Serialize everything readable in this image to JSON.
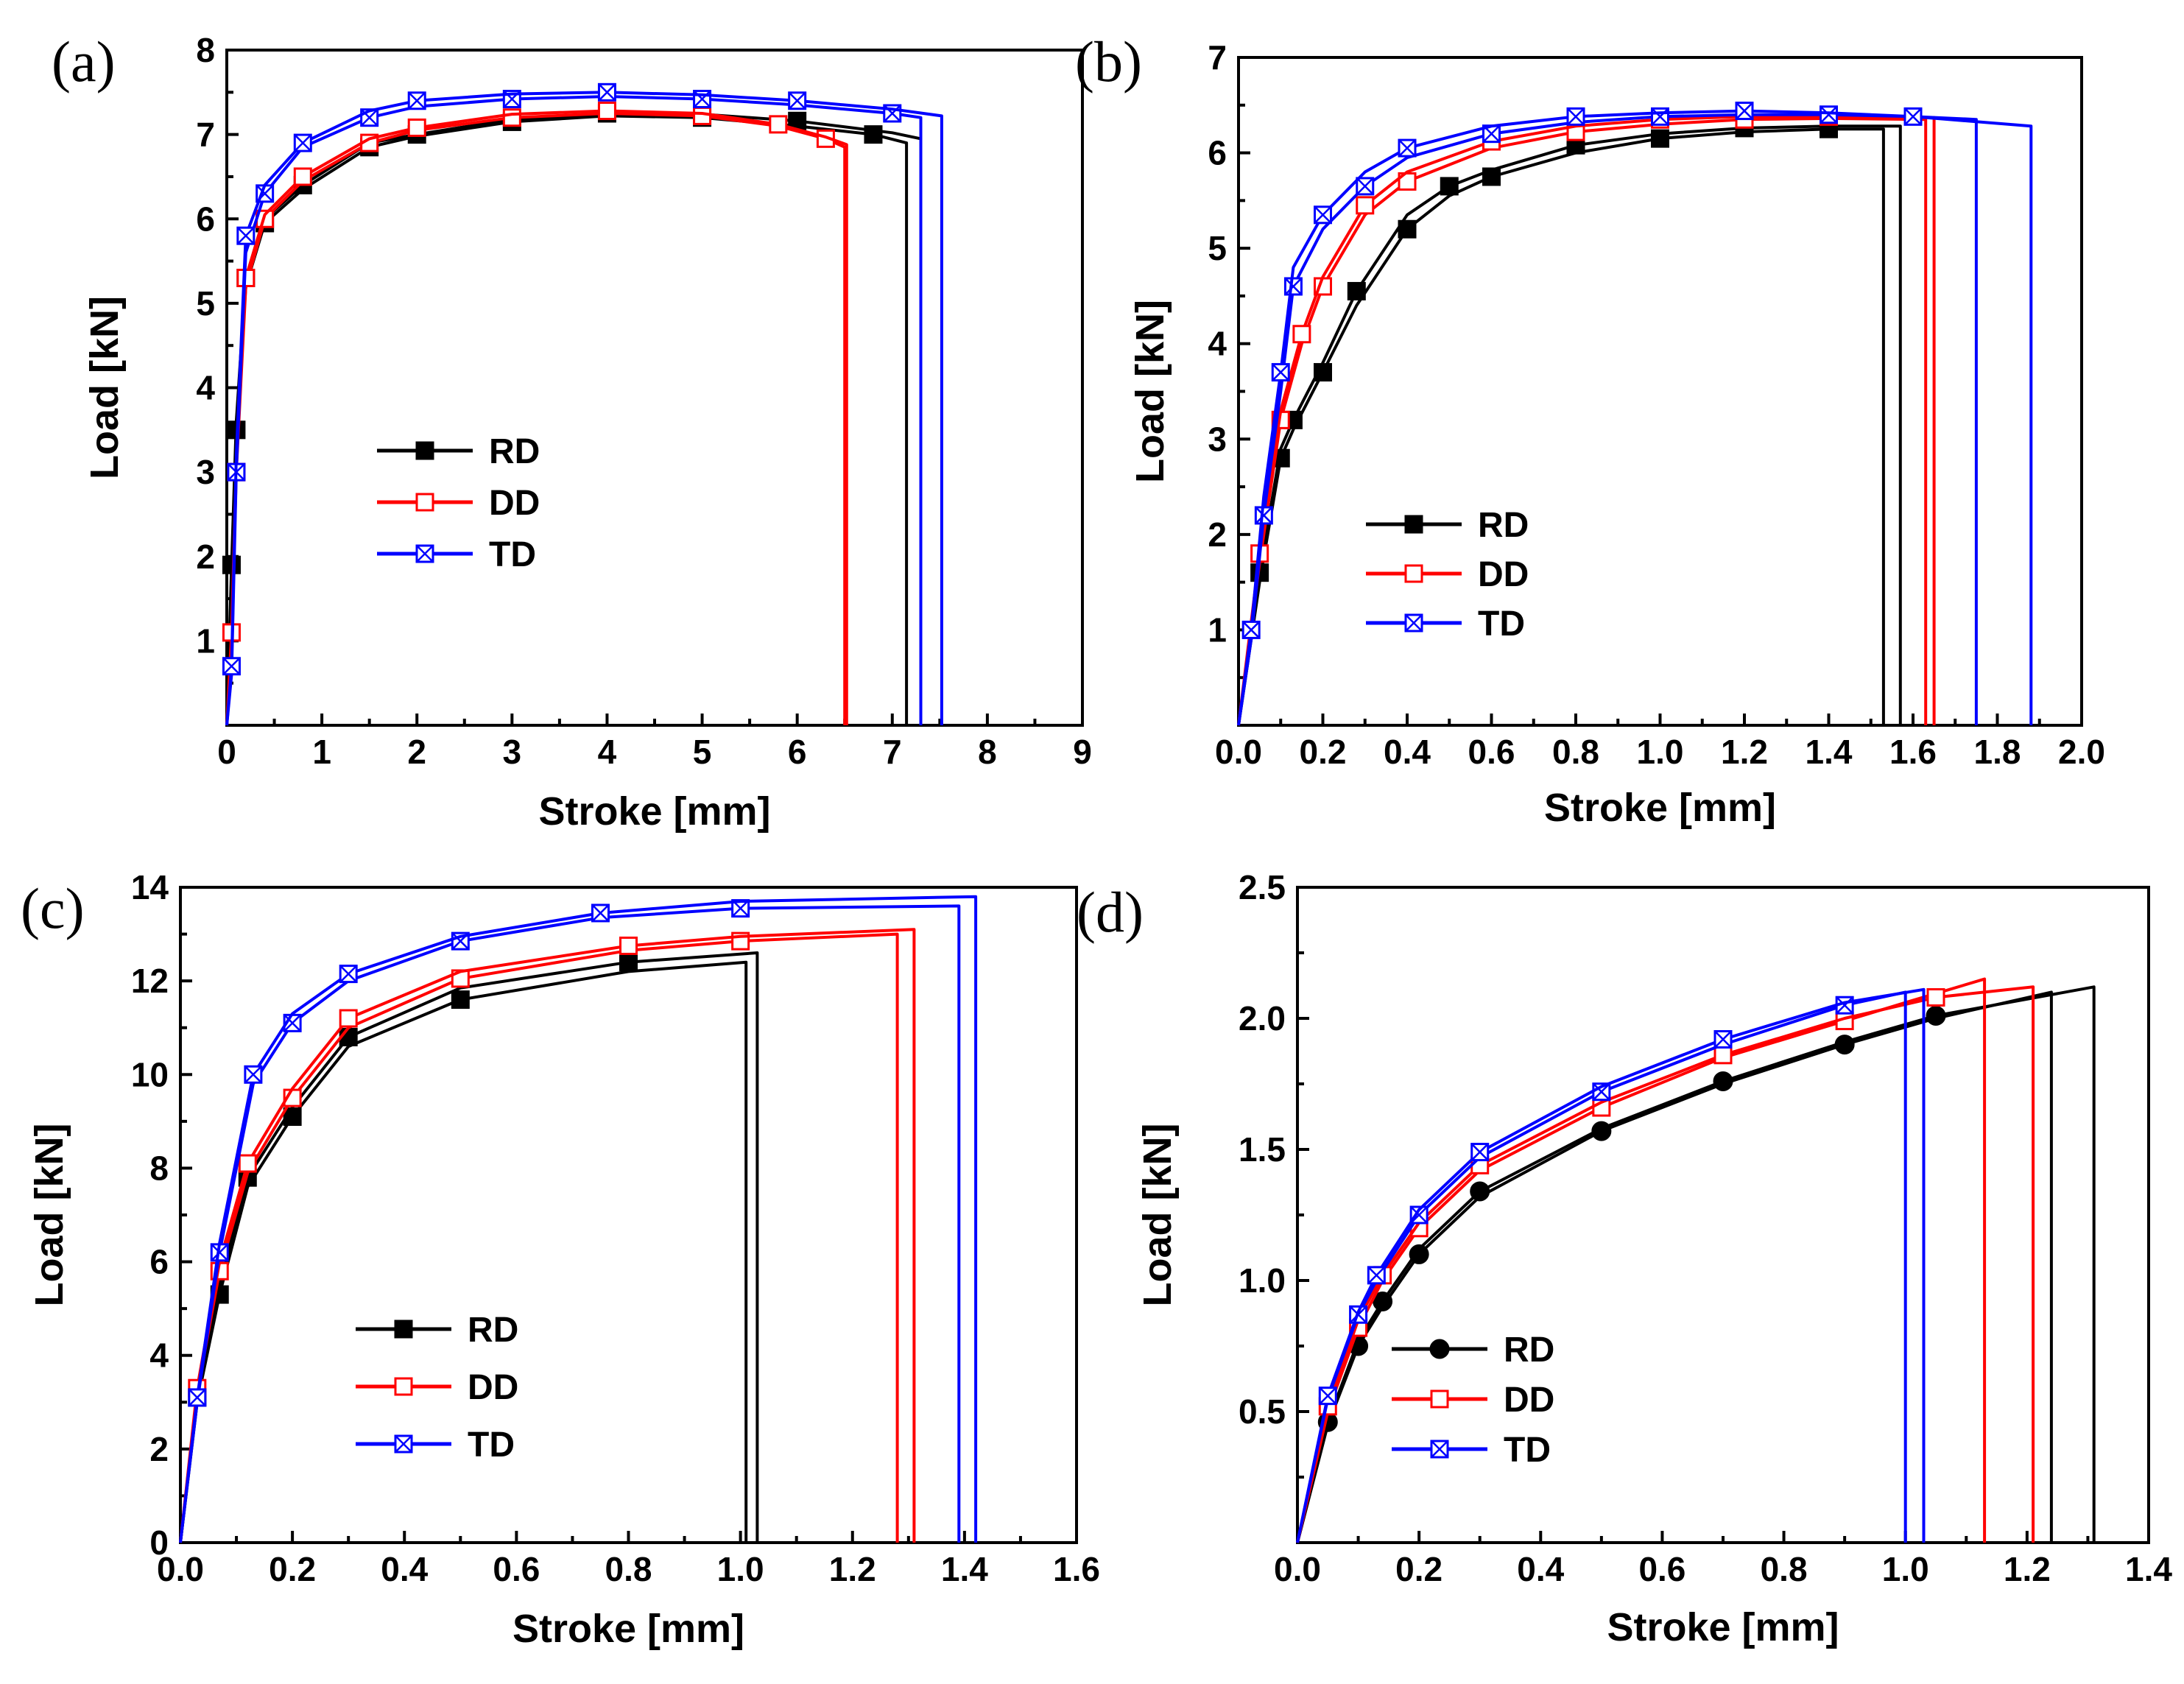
{
  "figure": {
    "series_colors": {
      "RD": "#000000",
      "DD": "#ff0000",
      "TD": "#0000ff"
    }
  },
  "chart_data": [
    {
      "type": "line",
      "panel_label": "(a)",
      "xlabel": "Stroke [mm]",
      "ylabel": "Load [kN]",
      "xlim": [
        0,
        9
      ],
      "ylim": [
        0,
        8
      ],
      "xticks": [
        0,
        1,
        2,
        3,
        4,
        5,
        6,
        7,
        8,
        9
      ],
      "yticks": [
        1,
        2,
        3,
        4,
        5,
        6,
        7,
        8
      ],
      "legend": [
        "RD",
        "DD",
        "TD"
      ],
      "series": [
        {
          "name": "RD",
          "marker": "square-filled",
          "curves": [
            {
              "x": [
                0,
                0.05,
                0.1,
                0.2,
                0.4,
                0.8,
                1.5,
                2.0,
                3.0,
                4.0,
                5.0,
                6.0,
                6.8,
                7.15
              ],
              "y": [
                0,
                1.8,
                3.5,
                5.2,
                5.95,
                6.35,
                6.85,
                6.98,
                7.15,
                7.22,
                7.2,
                7.1,
                7.0,
                6.9
              ]
            },
            {
              "x": [
                0,
                0.05,
                0.1,
                0.2,
                0.4,
                0.8,
                1.5,
                2.0,
                3.0,
                4.0,
                5.0,
                6.0,
                7.0,
                7.3
              ],
              "y": [
                0,
                1.9,
                3.6,
                5.3,
                6.0,
                6.4,
                6.9,
                7.0,
                7.18,
                7.25,
                7.24,
                7.16,
                7.02,
                6.95
              ]
            }
          ]
        },
        {
          "name": "DD",
          "marker": "square-open",
          "curves": [
            {
              "x": [
                0,
                0.05,
                0.1,
                0.2,
                0.4,
                0.8,
                1.5,
                2.0,
                3.0,
                4.0,
                5.0,
                5.8,
                6.3,
                6.5
              ],
              "y": [
                0,
                1.0,
                3.0,
                5.2,
                6.0,
                6.45,
                6.9,
                7.05,
                7.2,
                7.25,
                7.22,
                7.1,
                6.95,
                6.85
              ]
            },
            {
              "x": [
                0,
                0.05,
                0.1,
                0.2,
                0.4,
                0.8,
                1.5,
                2.0,
                3.0,
                4.0,
                5.0,
                5.8,
                6.3,
                6.52
              ],
              "y": [
                0,
                1.1,
                3.1,
                5.3,
                6.05,
                6.5,
                6.95,
                7.08,
                7.24,
                7.28,
                7.25,
                7.12,
                6.97,
                6.88
              ]
            }
          ]
        },
        {
          "name": "TD",
          "marker": "square-open-cross",
          "curves": [
            {
              "x": [
                0,
                0.05,
                0.1,
                0.2,
                0.4,
                0.8,
                1.5,
                2.0,
                3.0,
                4.0,
                5.0,
                6.0,
                7.0,
                7.3
              ],
              "y": [
                0,
                0.6,
                3.0,
                5.6,
                6.3,
                6.85,
                7.2,
                7.33,
                7.42,
                7.45,
                7.42,
                7.35,
                7.25,
                7.2
              ]
            },
            {
              "x": [
                0,
                0.05,
                0.1,
                0.2,
                0.4,
                0.8,
                1.5,
                2.0,
                3.0,
                4.0,
                5.0,
                6.0,
                7.0,
                7.52
              ],
              "y": [
                0,
                0.7,
                3.2,
                5.8,
                6.4,
                6.9,
                7.28,
                7.4,
                7.48,
                7.5,
                7.47,
                7.4,
                7.3,
                7.22
              ]
            }
          ]
        }
      ]
    },
    {
      "type": "line",
      "panel_label": "(b)",
      "xlabel": "Stroke [mm]",
      "ylabel": "Load [kN]",
      "xlim": [
        0,
        2.0
      ],
      "ylim": [
        0,
        7
      ],
      "xticks": [
        0.0,
        0.2,
        0.4,
        0.6,
        0.8,
        1.0,
        1.2,
        1.4,
        1.6,
        1.8,
        2.0
      ],
      "yticks": [
        1,
        2,
        3,
        4,
        5,
        6,
        7
      ],
      "legend": [
        "RD",
        "DD",
        "TD"
      ],
      "series": [
        {
          "name": "RD",
          "marker": "square-filled",
          "curves": [
            {
              "x": [
                0,
                0.05,
                0.1,
                0.13,
                0.2,
                0.28,
                0.4,
                0.5,
                0.6,
                0.8,
                1.0,
                1.2,
                1.4,
                1.53
              ],
              "y": [
                0,
                1.5,
                2.8,
                3.1,
                3.7,
                4.4,
                5.2,
                5.55,
                5.75,
                6.0,
                6.15,
                6.22,
                6.25,
                6.25
              ]
            },
            {
              "x": [
                0,
                0.05,
                0.1,
                0.13,
                0.2,
                0.28,
                0.4,
                0.5,
                0.6,
                0.8,
                1.0,
                1.2,
                1.4,
                1.57
              ],
              "y": [
                0,
                1.6,
                2.9,
                3.2,
                3.8,
                4.55,
                5.35,
                5.65,
                5.82,
                6.08,
                6.2,
                6.26,
                6.28,
                6.28
              ]
            }
          ]
        },
        {
          "name": "DD",
          "marker": "square-open",
          "curves": [
            {
              "x": [
                0,
                0.05,
                0.1,
                0.15,
                0.2,
                0.3,
                0.4,
                0.6,
                0.8,
                1.0,
                1.2,
                1.4,
                1.63
              ],
              "y": [
                0,
                1.7,
                3.2,
                4.0,
                4.6,
                5.35,
                5.7,
                6.05,
                6.22,
                6.3,
                6.35,
                6.36,
                6.35
              ]
            },
            {
              "x": [
                0,
                0.05,
                0.1,
                0.15,
                0.2,
                0.3,
                0.4,
                0.6,
                0.8,
                1.0,
                1.2,
                1.4,
                1.65
              ],
              "y": [
                0,
                1.8,
                3.3,
                4.1,
                4.7,
                5.45,
                5.8,
                6.12,
                6.28,
                6.35,
                6.38,
                6.38,
                6.37
              ]
            }
          ]
        },
        {
          "name": "TD",
          "marker": "square-open-cross",
          "curves": [
            {
              "x": [
                0,
                0.03,
                0.06,
                0.1,
                0.13,
                0.2,
                0.3,
                0.4,
                0.6,
                0.8,
                1.0,
                1.2,
                1.4,
                1.6,
                1.75
              ],
              "y": [
                0,
                0.9,
                2.2,
                3.5,
                4.6,
                5.2,
                5.65,
                5.95,
                6.2,
                6.32,
                6.38,
                6.4,
                6.4,
                6.38,
                6.35
              ]
            },
            {
              "x": [
                0,
                0.03,
                0.06,
                0.1,
                0.13,
                0.2,
                0.3,
                0.4,
                0.6,
                0.8,
                1.0,
                1.2,
                1.4,
                1.6,
                1.88
              ],
              "y": [
                0,
                1.0,
                2.4,
                3.7,
                4.8,
                5.35,
                5.8,
                6.05,
                6.28,
                6.38,
                6.42,
                6.44,
                6.42,
                6.38,
                6.28
              ]
            }
          ]
        }
      ]
    },
    {
      "type": "line",
      "panel_label": "(c)",
      "xlabel": "Stroke [mm]",
      "ylabel": "Load [kN]",
      "xlim": [
        0,
        1.6
      ],
      "ylim": [
        0,
        14
      ],
      "xticks": [
        0.0,
        0.2,
        0.4,
        0.6,
        0.8,
        1.0,
        1.2,
        1.4,
        1.6
      ],
      "yticks": [
        0,
        2,
        4,
        6,
        8,
        10,
        12,
        14
      ],
      "legend": [
        "RD",
        "DD",
        "TD"
      ],
      "series": [
        {
          "name": "RD",
          "marker": "square-filled",
          "curves": [
            {
              "x": [
                0,
                0.03,
                0.07,
                0.12,
                0.2,
                0.3,
                0.5,
                0.8,
                1.01
              ],
              "y": [
                0,
                3.0,
                5.3,
                7.6,
                9.1,
                10.6,
                11.6,
                12.2,
                12.4
              ]
            },
            {
              "x": [
                0,
                0.03,
                0.07,
                0.12,
                0.2,
                0.3,
                0.5,
                0.8,
                1.03
              ],
              "y": [
                0,
                3.1,
                5.5,
                7.8,
                9.3,
                10.8,
                11.85,
                12.4,
                12.6
              ]
            }
          ]
        },
        {
          "name": "DD",
          "marker": "square-open",
          "curves": [
            {
              "x": [
                0,
                0.03,
                0.07,
                0.12,
                0.2,
                0.3,
                0.5,
                0.8,
                1.0,
                1.28
              ],
              "y": [
                0,
                3.2,
                5.8,
                7.9,
                9.5,
                11.0,
                12.05,
                12.65,
                12.85,
                13.0
              ]
            },
            {
              "x": [
                0,
                0.03,
                0.07,
                0.12,
                0.2,
                0.3,
                0.5,
                0.8,
                1.0,
                1.31
              ],
              "y": [
                0,
                3.3,
                6.0,
                8.1,
                9.7,
                11.2,
                12.2,
                12.75,
                12.95,
                13.1
              ]
            }
          ]
        },
        {
          "name": "TD",
          "marker": "square-open-cross",
          "curves": [
            {
              "x": [
                0,
                0.03,
                0.07,
                0.13,
                0.2,
                0.3,
                0.5,
                0.75,
                1.0,
                1.39
              ],
              "y": [
                0,
                3.0,
                6.2,
                9.8,
                11.1,
                12.0,
                12.85,
                13.35,
                13.55,
                13.6
              ]
            },
            {
              "x": [
                0,
                0.03,
                0.07,
                0.13,
                0.2,
                0.3,
                0.5,
                0.75,
                1.0,
                1.42
              ],
              "y": [
                0,
                3.1,
                6.4,
                10.0,
                11.3,
                12.15,
                12.95,
                13.45,
                13.7,
                13.8
              ]
            }
          ]
        }
      ]
    },
    {
      "type": "line",
      "panel_label": "(d)",
      "xlabel": "Stroke [mm]",
      "ylabel": "Load [kN]",
      "xlim": [
        0,
        1.4
      ],
      "ylim": [
        0,
        2.5
      ],
      "xticks": [
        0.0,
        0.2,
        0.4,
        0.6,
        0.8,
        1.0,
        1.2,
        1.4
      ],
      "yticks": [
        0.5,
        1.0,
        1.5,
        2.0,
        2.5
      ],
      "legend": [
        "RD",
        "DD",
        "TD"
      ],
      "series": [
        {
          "name": "RD",
          "marker": "circle-filled",
          "curves": [
            {
              "x": [
                0,
                0.05,
                0.1,
                0.14,
                0.2,
                0.3,
                0.5,
                0.7,
                0.9,
                1.05,
                1.24
              ],
              "y": [
                0,
                0.45,
                0.75,
                0.9,
                1.1,
                1.32,
                1.57,
                1.75,
                1.9,
                2.0,
                2.1
              ]
            },
            {
              "x": [
                0,
                0.05,
                0.1,
                0.14,
                0.2,
                0.3,
                0.5,
                0.7,
                0.9,
                1.05,
                1.31
              ],
              "y": [
                0,
                0.46,
                0.77,
                0.92,
                1.12,
                1.34,
                1.58,
                1.76,
                1.91,
                2.01,
                2.12
              ]
            }
          ]
        },
        {
          "name": "DD",
          "marker": "square-open",
          "curves": [
            {
              "x": [
                0,
                0.05,
                0.1,
                0.14,
                0.2,
                0.3,
                0.5,
                0.7,
                0.9,
                1.0,
                1.13
              ],
              "y": [
                0,
                0.5,
                0.82,
                1.0,
                1.2,
                1.42,
                1.66,
                1.85,
                1.99,
                2.06,
                2.15
              ]
            },
            {
              "x": [
                0,
                0.05,
                0.1,
                0.14,
                0.2,
                0.3,
                0.5,
                0.7,
                0.9,
                1.05,
                1.21
              ],
              "y": [
                0,
                0.52,
                0.85,
                1.02,
                1.22,
                1.44,
                1.68,
                1.86,
                2.0,
                2.08,
                2.12
              ]
            }
          ]
        },
        {
          "name": "TD",
          "marker": "square-open-cross",
          "curves": [
            {
              "x": [
                0,
                0.05,
                0.1,
                0.13,
                0.2,
                0.3,
                0.5,
                0.7,
                0.9,
                1.0
              ],
              "y": [
                0,
                0.55,
                0.87,
                1.0,
                1.25,
                1.47,
                1.72,
                1.9,
                2.05,
                2.1
              ]
            },
            {
              "x": [
                0,
                0.05,
                0.1,
                0.13,
                0.2,
                0.3,
                0.5,
                0.7,
                0.9,
                1.03
              ],
              "y": [
                0,
                0.56,
                0.88,
                1.02,
                1.27,
                1.49,
                1.74,
                1.92,
                2.06,
                2.11
              ]
            }
          ]
        }
      ]
    }
  ]
}
